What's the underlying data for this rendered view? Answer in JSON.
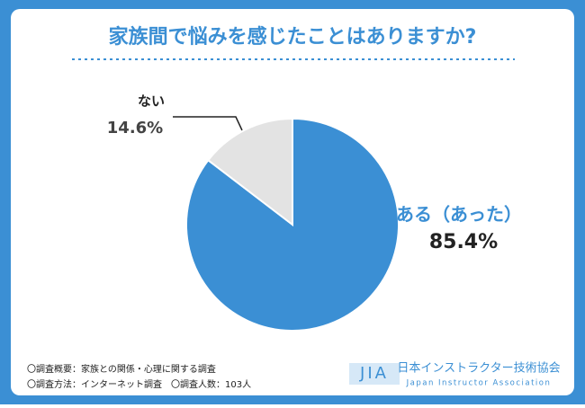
{
  "chart_data": {
    "type": "pie",
    "title": "家族間で悩みを感じたことはありますか?",
    "categories": [
      "ある（あった）",
      "ない"
    ],
    "values": [
      85.4,
      14.6
    ],
    "value_labels": [
      "85.4%",
      "14.6%"
    ],
    "colors": [
      "#3b8fd4",
      "#e3e3e3"
    ]
  },
  "footer": {
    "survey_lines": [
      "〇調査概要：家族との関係・心理に関する調査",
      "〇調査方法：インターネット調査　〇調査人数：103人"
    ],
    "logo": "JIA",
    "org_name": "日本インストラクター技術協会",
    "org_name_en": "Japan Instructor Association"
  }
}
